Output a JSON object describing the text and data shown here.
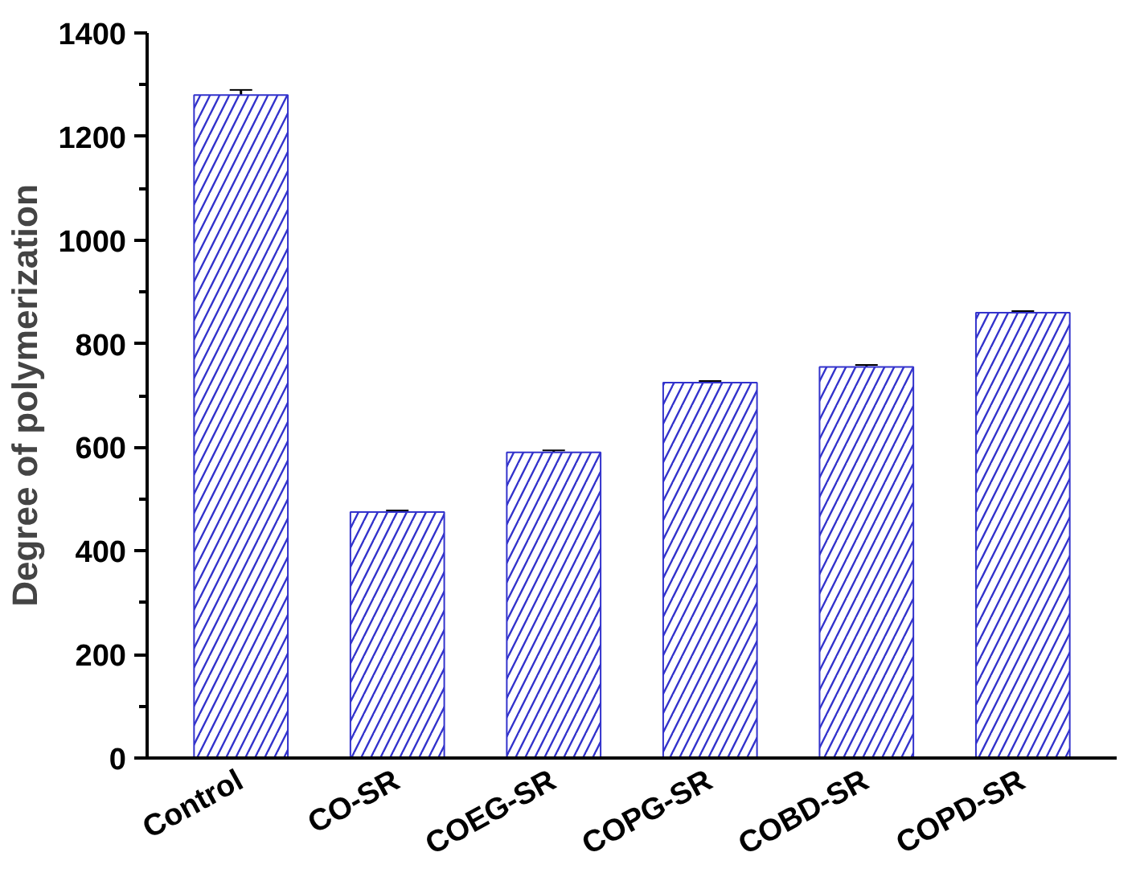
{
  "chart_data": {
    "type": "bar",
    "ylabel": "Degree of polymerization",
    "categories": [
      "Control",
      "CO-SR",
      "COEG-SR",
      "COPG-SR",
      "COBD-SR",
      "COPD-SR"
    ],
    "values": [
      1280,
      475,
      590,
      725,
      755,
      860
    ],
    "errors": [
      10,
      3,
      4,
      3,
      4,
      3
    ],
    "color": "#3333cc",
    "ylim": [
      0,
      1400
    ],
    "yticks": [
      0,
      200,
      400,
      600,
      800,
      1000,
      1200,
      1400
    ],
    "grid": false
  }
}
